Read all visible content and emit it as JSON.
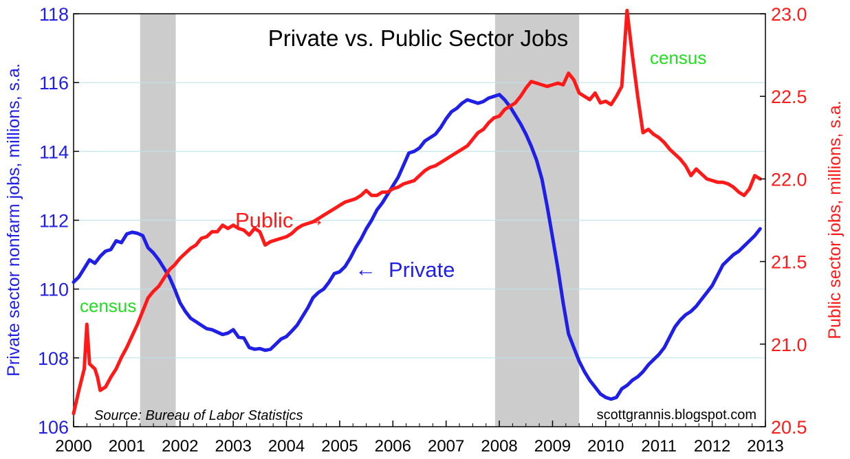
{
  "colors": {
    "private": "#1f1fe6",
    "public": "#ff1a1a",
    "census": "#22dd22",
    "recession": "#cccccc",
    "grid": "#bfe3ea"
  },
  "chart_data": {
    "type": "line",
    "title": "Private vs. Public Sector Jobs",
    "xlabel": "",
    "ylabel_left": "Private sector nonfarm jobs, millions, s.a.",
    "ylabel_right": "Public sector jobs, millions, s.a.",
    "xlim": [
      2000,
      2013
    ],
    "ylim_left": [
      106,
      118
    ],
    "ylim_right": [
      20.5,
      23.0
    ],
    "x_ticks": [
      "2000",
      "2001",
      "2002",
      "2003",
      "2004",
      "2005",
      "2006",
      "2007",
      "2008",
      "2009",
      "2010",
      "2011",
      "2012",
      "2013"
    ],
    "y_ticks_left": [
      "106",
      "108",
      "110",
      "112",
      "114",
      "116",
      "118"
    ],
    "y_ticks_right": [
      "20.5",
      "21.0",
      "21.5",
      "22.0",
      "22.5",
      "23.0"
    ],
    "grid": true,
    "recessions": [
      [
        2001.25,
        2001.92
      ],
      [
        2007.92,
        2009.5
      ]
    ],
    "series": [
      {
        "name": "Private",
        "axis": "left",
        "points": [
          [
            2000.0,
            110.2
          ],
          [
            2000.1,
            110.35
          ],
          [
            2000.2,
            110.6
          ],
          [
            2000.3,
            110.85
          ],
          [
            2000.4,
            110.75
          ],
          [
            2000.5,
            110.95
          ],
          [
            2000.6,
            111.1
          ],
          [
            2000.7,
            111.15
          ],
          [
            2000.8,
            111.4
          ],
          [
            2000.9,
            111.35
          ],
          [
            2001.0,
            111.6
          ],
          [
            2001.1,
            111.65
          ],
          [
            2001.2,
            111.62
          ],
          [
            2001.3,
            111.55
          ],
          [
            2001.4,
            111.2
          ],
          [
            2001.5,
            111.05
          ],
          [
            2001.6,
            110.85
          ],
          [
            2001.7,
            110.6
          ],
          [
            2001.8,
            110.35
          ],
          [
            2001.9,
            110.0
          ],
          [
            2002.0,
            109.6
          ],
          [
            2002.1,
            109.35
          ],
          [
            2002.2,
            109.15
          ],
          [
            2002.3,
            109.05
          ],
          [
            2002.4,
            108.95
          ],
          [
            2002.5,
            108.85
          ],
          [
            2002.6,
            108.82
          ],
          [
            2002.7,
            108.75
          ],
          [
            2002.8,
            108.68
          ],
          [
            2002.9,
            108.72
          ],
          [
            2003.0,
            108.82
          ],
          [
            2003.1,
            108.6
          ],
          [
            2003.2,
            108.58
          ],
          [
            2003.3,
            108.3
          ],
          [
            2003.4,
            108.25
          ],
          [
            2003.5,
            108.27
          ],
          [
            2003.6,
            108.22
          ],
          [
            2003.7,
            108.25
          ],
          [
            2003.8,
            108.4
          ],
          [
            2003.9,
            108.55
          ],
          [
            2004.0,
            108.62
          ],
          [
            2004.1,
            108.78
          ],
          [
            2004.2,
            108.95
          ],
          [
            2004.3,
            109.2
          ],
          [
            2004.4,
            109.45
          ],
          [
            2004.5,
            109.75
          ],
          [
            2004.6,
            109.9
          ],
          [
            2004.7,
            110.0
          ],
          [
            2004.8,
            110.2
          ],
          [
            2004.9,
            110.45
          ],
          [
            2005.0,
            110.5
          ],
          [
            2005.1,
            110.65
          ],
          [
            2005.2,
            110.9
          ],
          [
            2005.3,
            111.2
          ],
          [
            2005.4,
            111.45
          ],
          [
            2005.5,
            111.75
          ],
          [
            2005.6,
            112.0
          ],
          [
            2005.7,
            112.3
          ],
          [
            2005.8,
            112.5
          ],
          [
            2005.9,
            112.75
          ],
          [
            2006.0,
            113.0
          ],
          [
            2006.1,
            113.25
          ],
          [
            2006.2,
            113.6
          ],
          [
            2006.3,
            113.95
          ],
          [
            2006.4,
            114.0
          ],
          [
            2006.5,
            114.1
          ],
          [
            2006.6,
            114.3
          ],
          [
            2006.7,
            114.4
          ],
          [
            2006.8,
            114.5
          ],
          [
            2006.9,
            114.7
          ],
          [
            2007.0,
            114.95
          ],
          [
            2007.1,
            115.15
          ],
          [
            2007.2,
            115.25
          ],
          [
            2007.3,
            115.4
          ],
          [
            2007.4,
            115.5
          ],
          [
            2007.5,
            115.45
          ],
          [
            2007.6,
            115.4
          ],
          [
            2007.7,
            115.45
          ],
          [
            2007.8,
            115.55
          ],
          [
            2007.9,
            115.6
          ],
          [
            2008.0,
            115.65
          ],
          [
            2008.1,
            115.5
          ],
          [
            2008.2,
            115.3
          ],
          [
            2008.3,
            115.05
          ],
          [
            2008.4,
            114.8
          ],
          [
            2008.5,
            114.5
          ],
          [
            2008.6,
            114.15
          ],
          [
            2008.7,
            113.75
          ],
          [
            2008.8,
            113.2
          ],
          [
            2008.9,
            112.4
          ],
          [
            2009.0,
            111.5
          ],
          [
            2009.1,
            110.6
          ],
          [
            2009.2,
            109.6
          ],
          [
            2009.3,
            108.7
          ],
          [
            2009.4,
            108.3
          ],
          [
            2009.5,
            107.9
          ],
          [
            2009.6,
            107.6
          ],
          [
            2009.7,
            107.35
          ],
          [
            2009.8,
            107.15
          ],
          [
            2009.9,
            106.95
          ],
          [
            2010.0,
            106.85
          ],
          [
            2010.1,
            106.8
          ],
          [
            2010.2,
            106.85
          ],
          [
            2010.3,
            107.1
          ],
          [
            2010.4,
            107.2
          ],
          [
            2010.5,
            107.35
          ],
          [
            2010.6,
            107.45
          ],
          [
            2010.7,
            107.6
          ],
          [
            2010.8,
            107.8
          ],
          [
            2010.9,
            107.95
          ],
          [
            2011.0,
            108.1
          ],
          [
            2011.1,
            108.3
          ],
          [
            2011.2,
            108.6
          ],
          [
            2011.3,
            108.9
          ],
          [
            2011.4,
            109.1
          ],
          [
            2011.5,
            109.25
          ],
          [
            2011.6,
            109.35
          ],
          [
            2011.7,
            109.5
          ],
          [
            2011.8,
            109.7
          ],
          [
            2011.9,
            109.9
          ],
          [
            2012.0,
            110.1
          ],
          [
            2012.1,
            110.4
          ],
          [
            2012.2,
            110.7
          ],
          [
            2012.3,
            110.85
          ],
          [
            2012.4,
            111.0
          ],
          [
            2012.5,
            111.1
          ],
          [
            2012.6,
            111.25
          ],
          [
            2012.7,
            111.4
          ],
          [
            2012.8,
            111.55
          ],
          [
            2012.9,
            111.75
          ]
        ]
      },
      {
        "name": "Public",
        "axis": "right",
        "points": [
          [
            2000.0,
            20.58
          ],
          [
            2000.1,
            20.72
          ],
          [
            2000.2,
            20.85
          ],
          [
            2000.25,
            21.12
          ],
          [
            2000.3,
            20.88
          ],
          [
            2000.4,
            20.85
          ],
          [
            2000.45,
            20.8
          ],
          [
            2000.5,
            20.72
          ],
          [
            2000.6,
            20.74
          ],
          [
            2000.7,
            20.8
          ],
          [
            2000.8,
            20.85
          ],
          [
            2000.9,
            20.92
          ],
          [
            2001.0,
            20.98
          ],
          [
            2001.1,
            21.05
          ],
          [
            2001.2,
            21.12
          ],
          [
            2001.3,
            21.2
          ],
          [
            2001.4,
            21.28
          ],
          [
            2001.5,
            21.32
          ],
          [
            2001.6,
            21.35
          ],
          [
            2001.7,
            21.4
          ],
          [
            2001.8,
            21.45
          ],
          [
            2001.9,
            21.48
          ],
          [
            2002.0,
            21.52
          ],
          [
            2002.1,
            21.55
          ],
          [
            2002.2,
            21.58
          ],
          [
            2002.3,
            21.6
          ],
          [
            2002.4,
            21.64
          ],
          [
            2002.5,
            21.65
          ],
          [
            2002.6,
            21.68
          ],
          [
            2002.7,
            21.68
          ],
          [
            2002.8,
            21.72
          ],
          [
            2002.9,
            21.7
          ],
          [
            2003.0,
            21.72
          ],
          [
            2003.1,
            21.7
          ],
          [
            2003.2,
            21.69
          ],
          [
            2003.3,
            21.66
          ],
          [
            2003.4,
            21.7
          ],
          [
            2003.5,
            21.68
          ],
          [
            2003.6,
            21.6
          ],
          [
            2003.7,
            21.62
          ],
          [
            2003.8,
            21.63
          ],
          [
            2003.9,
            21.64
          ],
          [
            2004.0,
            21.65
          ],
          [
            2004.1,
            21.67
          ],
          [
            2004.2,
            21.7
          ],
          [
            2004.3,
            21.72
          ],
          [
            2004.4,
            21.73
          ],
          [
            2004.5,
            21.74
          ],
          [
            2004.6,
            21.76
          ],
          [
            2004.7,
            21.78
          ],
          [
            2004.8,
            21.8
          ],
          [
            2004.9,
            21.82
          ],
          [
            2005.0,
            21.84
          ],
          [
            2005.1,
            21.86
          ],
          [
            2005.2,
            21.87
          ],
          [
            2005.3,
            21.88
          ],
          [
            2005.4,
            21.9
          ],
          [
            2005.5,
            21.93
          ],
          [
            2005.6,
            21.9
          ],
          [
            2005.7,
            21.9
          ],
          [
            2005.8,
            21.92
          ],
          [
            2005.9,
            21.92
          ],
          [
            2006.0,
            21.94
          ],
          [
            2006.1,
            21.95
          ],
          [
            2006.2,
            21.97
          ],
          [
            2006.3,
            21.98
          ],
          [
            2006.4,
            21.99
          ],
          [
            2006.5,
            22.02
          ],
          [
            2006.6,
            22.05
          ],
          [
            2006.7,
            22.07
          ],
          [
            2006.8,
            22.08
          ],
          [
            2006.9,
            22.1
          ],
          [
            2007.0,
            22.12
          ],
          [
            2007.1,
            22.14
          ],
          [
            2007.2,
            22.16
          ],
          [
            2007.3,
            22.18
          ],
          [
            2007.4,
            22.2
          ],
          [
            2007.5,
            22.24
          ],
          [
            2007.6,
            22.28
          ],
          [
            2007.7,
            22.3
          ],
          [
            2007.8,
            22.34
          ],
          [
            2007.9,
            22.37
          ],
          [
            2008.0,
            22.38
          ],
          [
            2008.1,
            22.42
          ],
          [
            2008.2,
            22.44
          ],
          [
            2008.3,
            22.46
          ],
          [
            2008.4,
            22.5
          ],
          [
            2008.5,
            22.55
          ],
          [
            2008.6,
            22.59
          ],
          [
            2008.7,
            22.58
          ],
          [
            2008.8,
            22.57
          ],
          [
            2008.9,
            22.56
          ],
          [
            2009.0,
            22.57
          ],
          [
            2009.1,
            22.58
          ],
          [
            2009.2,
            22.57
          ],
          [
            2009.3,
            22.64
          ],
          [
            2009.4,
            22.6
          ],
          [
            2009.5,
            22.52
          ],
          [
            2009.6,
            22.5
          ],
          [
            2009.7,
            22.48
          ],
          [
            2009.8,
            22.52
          ],
          [
            2009.9,
            22.46
          ],
          [
            2010.0,
            22.47
          ],
          [
            2010.1,
            22.45
          ],
          [
            2010.2,
            22.5
          ],
          [
            2010.3,
            22.56
          ],
          [
            2010.4,
            23.02
          ],
          [
            2010.5,
            22.75
          ],
          [
            2010.6,
            22.5
          ],
          [
            2010.7,
            22.28
          ],
          [
            2010.8,
            22.3
          ],
          [
            2010.9,
            22.27
          ],
          [
            2011.0,
            22.25
          ],
          [
            2011.1,
            22.22
          ],
          [
            2011.2,
            22.18
          ],
          [
            2011.3,
            22.15
          ],
          [
            2011.4,
            22.12
          ],
          [
            2011.5,
            22.08
          ],
          [
            2011.6,
            22.02
          ],
          [
            2011.7,
            22.06
          ],
          [
            2011.8,
            22.03
          ],
          [
            2011.9,
            22.0
          ],
          [
            2012.0,
            21.99
          ],
          [
            2012.1,
            21.98
          ],
          [
            2012.2,
            21.98
          ],
          [
            2012.3,
            21.97
          ],
          [
            2012.4,
            21.95
          ],
          [
            2012.5,
            21.92
          ],
          [
            2012.6,
            21.9
          ],
          [
            2012.7,
            21.94
          ],
          [
            2012.8,
            22.02
          ],
          [
            2012.9,
            22.0
          ]
        ]
      }
    ],
    "annotations": {
      "public_label": "Public",
      "public_arrow": "→",
      "private_arrow": "←",
      "private_label": "Private",
      "census_1": "census",
      "census_2": "census",
      "source": "Source: Bureau of Labor Statistics",
      "credit": "scottgrannis.blogspot.com"
    }
  }
}
